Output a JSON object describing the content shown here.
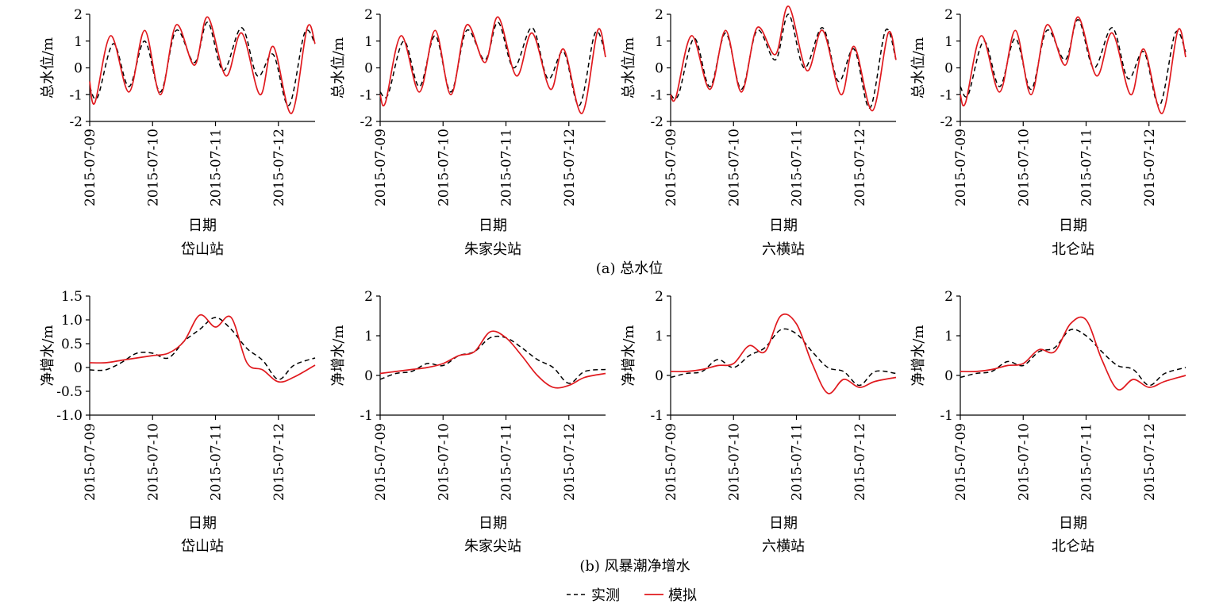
{
  "panel_captions": {
    "a": "(a) 总水位",
    "b": "(b) 风暴潮净增水"
  },
  "legend": {
    "placement": "bottom-center",
    "items": [
      {
        "label": "实测",
        "style": "dashed",
        "color": "#000000"
      },
      {
        "label": "模拟",
        "style": "solid",
        "color": "#e0191e"
      }
    ]
  },
  "chart_data": [
    {
      "type": "line",
      "panel": "a",
      "station": "岱山站",
      "xlabel": "日期",
      "ylabel": "总水位/m",
      "xlim": [
        "2015-07-09",
        "2015-07-12 14:00"
      ],
      "ylim": [
        -2,
        2
      ],
      "yticks": [
        -2,
        -1,
        0,
        1,
        2
      ],
      "ytick_labels": [
        "-2",
        "-1",
        "0",
        "1",
        "2"
      ],
      "xticks": [
        "2015-07-09",
        "2015-07-10",
        "2015-07-11",
        "2015-07-12"
      ],
      "grid": false,
      "series": [
        {
          "name": "实测",
          "color": "#000000",
          "dash": true,
          "x": [
            "2015-07-09 00:00",
            "2015-07-09 03:00",
            "2015-07-09 09:00",
            "2015-07-09 15:00",
            "2015-07-09 21:00",
            "2015-07-10 03:00",
            "2015-07-10 09:00",
            "2015-07-10 16:00",
            "2015-07-10 21:00",
            "2015-07-11 03:00",
            "2015-07-11 10:00",
            "2015-07-11 16:00",
            "2015-07-11 22:00",
            "2015-07-12 04:00",
            "2015-07-12 10:00",
            "2015-07-12 14:00"
          ],
          "y": [
            -0.7,
            -1.1,
            0.9,
            -0.7,
            1.0,
            -0.9,
            1.4,
            0.2,
            1.7,
            -0.1,
            1.5,
            -0.3,
            0.5,
            -1.4,
            1.3,
            0.9
          ]
        },
        {
          "name": "模拟",
          "color": "#e0191e",
          "dash": false,
          "x": [
            "2015-07-09 00:00",
            "2015-07-09 02:00",
            "2015-07-09 08:00",
            "2015-07-09 15:00",
            "2015-07-09 21:00",
            "2015-07-10 03:00",
            "2015-07-10 09:00",
            "2015-07-10 16:00",
            "2015-07-10 21:00",
            "2015-07-11 04:00",
            "2015-07-11 10:00",
            "2015-07-11 17:00",
            "2015-07-11 22:00",
            "2015-07-12 05:00",
            "2015-07-12 11:00",
            "2015-07-12 14:00"
          ],
          "y": [
            -0.5,
            -1.3,
            1.2,
            -0.9,
            1.4,
            -1.0,
            1.6,
            0.1,
            1.9,
            -0.3,
            1.3,
            -1.0,
            0.8,
            -1.7,
            1.5,
            0.9
          ]
        }
      ]
    },
    {
      "type": "line",
      "panel": "a",
      "station": "朱家尖站",
      "xlabel": "日期",
      "ylabel": "总水位/m",
      "xlim": [
        "2015-07-09",
        "2015-07-12 14:00"
      ],
      "ylim": [
        -2,
        2
      ],
      "yticks": [
        -2,
        -1,
        0,
        1,
        2
      ],
      "ytick_labels": [
        "-2",
        "-1",
        "0",
        "1",
        "2"
      ],
      "xticks": [
        "2015-07-09",
        "2015-07-10",
        "2015-07-11",
        "2015-07-12"
      ],
      "grid": false,
      "series": [
        {
          "name": "实测",
          "color": "#000000",
          "dash": true,
          "x": [
            "2015-07-09 00:00",
            "2015-07-09 03:00",
            "2015-07-09 09:00",
            "2015-07-09 15:00",
            "2015-07-09 21:00",
            "2015-07-10 03:00",
            "2015-07-10 09:00",
            "2015-07-10 16:00",
            "2015-07-10 21:00",
            "2015-07-11 03:00",
            "2015-07-11 10:00",
            "2015-07-11 16:00",
            "2015-07-11 22:00",
            "2015-07-12 04:00",
            "2015-07-12 10:00",
            "2015-07-12 14:00"
          ],
          "y": [
            -0.9,
            -1.0,
            1.0,
            -0.7,
            1.2,
            -0.9,
            1.4,
            0.3,
            1.7,
            0.0,
            1.5,
            -0.4,
            0.6,
            -1.4,
            1.3,
            0.5
          ]
        },
        {
          "name": "模拟",
          "color": "#e0191e",
          "dash": false,
          "x": [
            "2015-07-09 00:00",
            "2015-07-09 02:00",
            "2015-07-09 08:00",
            "2015-07-09 15:00",
            "2015-07-09 21:00",
            "2015-07-10 03:00",
            "2015-07-10 09:00",
            "2015-07-10 16:00",
            "2015-07-10 21:00",
            "2015-07-11 04:00",
            "2015-07-11 10:00",
            "2015-07-11 17:00",
            "2015-07-11 22:00",
            "2015-07-12 05:00",
            "2015-07-12 11:00",
            "2015-07-12 14:00"
          ],
          "y": [
            -1.0,
            -1.3,
            1.2,
            -0.9,
            1.4,
            -1.0,
            1.6,
            0.2,
            1.9,
            -0.3,
            1.3,
            -0.8,
            0.7,
            -1.7,
            1.4,
            0.4
          ]
        }
      ]
    },
    {
      "type": "line",
      "panel": "a",
      "station": "六横站",
      "xlabel": "日期",
      "ylabel": "总水位/m",
      "xlim": [
        "2015-07-09",
        "2015-07-12 14:00"
      ],
      "ylim": [
        -2,
        2
      ],
      "yticks": [
        -2,
        -1,
        0,
        1,
        2
      ],
      "ytick_labels": [
        "-2",
        "-1",
        "0",
        "1",
        "2"
      ],
      "xticks": [
        "2015-07-09",
        "2015-07-10",
        "2015-07-11",
        "2015-07-12"
      ],
      "grid": false,
      "series": [
        {
          "name": "实测",
          "color": "#000000",
          "dash": true,
          "x": [
            "2015-07-09 00:00",
            "2015-07-09 03:00",
            "2015-07-09 09:00",
            "2015-07-09 15:00",
            "2015-07-09 21:00",
            "2015-07-10 03:00",
            "2015-07-10 09:00",
            "2015-07-10 16:00",
            "2015-07-10 21:00",
            "2015-07-11 03:00",
            "2015-07-11 10:00",
            "2015-07-11 16:00",
            "2015-07-11 22:00",
            "2015-07-12 04:00",
            "2015-07-12 10:00",
            "2015-07-12 14:00"
          ],
          "y": [
            -1.0,
            -1.0,
            1.1,
            -0.7,
            1.3,
            -0.8,
            1.4,
            0.3,
            2.0,
            0.0,
            1.5,
            -0.5,
            0.7,
            -1.5,
            1.4,
            0.3
          ]
        },
        {
          "name": "模拟",
          "color": "#e0191e",
          "dash": false,
          "x": [
            "2015-07-09 00:00",
            "2015-07-09 02:00",
            "2015-07-09 08:00",
            "2015-07-09 15:00",
            "2015-07-09 21:00",
            "2015-07-10 03:00",
            "2015-07-10 09:00",
            "2015-07-10 16:00",
            "2015-07-10 21:00",
            "2015-07-11 04:00",
            "2015-07-11 10:00",
            "2015-07-11 17:00",
            "2015-07-11 22:00",
            "2015-07-12 05:00",
            "2015-07-12 11:00",
            "2015-07-12 14:00"
          ],
          "y": [
            -1.0,
            -1.1,
            1.2,
            -0.8,
            1.4,
            -0.9,
            1.5,
            0.5,
            2.3,
            -0.1,
            1.4,
            -1.0,
            0.8,
            -1.6,
            1.3,
            0.3
          ]
        }
      ]
    },
    {
      "type": "line",
      "panel": "a",
      "station": "北仑站",
      "xlabel": "日期",
      "ylabel": "总水位/m",
      "xlim": [
        "2015-07-09",
        "2015-07-12 14:00"
      ],
      "ylim": [
        -2,
        2
      ],
      "yticks": [
        -2,
        -1,
        0,
        1,
        2
      ],
      "ytick_labels": [
        "-2",
        "-1",
        "0",
        "1",
        "2"
      ],
      "xticks": [
        "2015-07-09",
        "2015-07-10",
        "2015-07-11",
        "2015-07-12"
      ],
      "grid": false,
      "series": [
        {
          "name": "实测",
          "color": "#000000",
          "dash": true,
          "x": [
            "2015-07-09 00:00",
            "2015-07-09 03:00",
            "2015-07-09 09:00",
            "2015-07-09 15:00",
            "2015-07-09 21:00",
            "2015-07-10 03:00",
            "2015-07-10 09:00",
            "2015-07-10 16:00",
            "2015-07-10 21:00",
            "2015-07-11 03:00",
            "2015-07-11 10:00",
            "2015-07-11 16:00",
            "2015-07-11 22:00",
            "2015-07-12 04:00",
            "2015-07-12 10:00",
            "2015-07-12 14:00"
          ],
          "y": [
            -0.7,
            -1.0,
            1.0,
            -0.7,
            1.1,
            -0.8,
            1.4,
            0.3,
            1.8,
            0.0,
            1.5,
            -0.4,
            0.6,
            -1.4,
            1.3,
            0.6
          ]
        },
        {
          "name": "模拟",
          "color": "#e0191e",
          "dash": false,
          "x": [
            "2015-07-09 00:00",
            "2015-07-09 02:00",
            "2015-07-09 08:00",
            "2015-07-09 15:00",
            "2015-07-09 21:00",
            "2015-07-10 03:00",
            "2015-07-10 09:00",
            "2015-07-10 16:00",
            "2015-07-10 21:00",
            "2015-07-11 04:00",
            "2015-07-11 10:00",
            "2015-07-11 17:00",
            "2015-07-11 22:00",
            "2015-07-12 05:00",
            "2015-07-12 11:00",
            "2015-07-12 14:00"
          ],
          "y": [
            -1.0,
            -1.3,
            1.2,
            -0.9,
            1.4,
            -1.0,
            1.6,
            0.1,
            1.9,
            -0.3,
            1.3,
            -1.0,
            0.7,
            -1.7,
            1.4,
            0.4
          ]
        }
      ]
    },
    {
      "type": "line",
      "panel": "b",
      "station": "岱山站",
      "xlabel": "日期",
      "ylabel": "净增水/m",
      "xlim": [
        "2015-07-09",
        "2015-07-12 14:00"
      ],
      "ylim": [
        -1.0,
        1.5
      ],
      "yticks": [
        -1.0,
        -0.5,
        0,
        0.5,
        1.0,
        1.5
      ],
      "ytick_labels": [
        "-1.0",
        "-0.5",
        "0",
        "0.5",
        "1.0",
        "1.5"
      ],
      "xticks": [
        "2015-07-09",
        "2015-07-10",
        "2015-07-11",
        "2015-07-12"
      ],
      "grid": false,
      "series": [
        {
          "name": "实测",
          "color": "#000000",
          "dash": true,
          "x": [
            "2015-07-09 00:00",
            "2015-07-09 06:00",
            "2015-07-09 12:00",
            "2015-07-09 18:00",
            "2015-07-10 00:00",
            "2015-07-10 06:00",
            "2015-07-10 12:00",
            "2015-07-10 18:00",
            "2015-07-11 00:00",
            "2015-07-11 06:00",
            "2015-07-11 12:00",
            "2015-07-11 18:00",
            "2015-07-12 00:00",
            "2015-07-12 06:00",
            "2015-07-12 14:00"
          ],
          "y": [
            -0.05,
            -0.05,
            0.1,
            0.3,
            0.3,
            0.2,
            0.55,
            0.8,
            1.05,
            0.8,
            0.4,
            0.15,
            -0.25,
            0.05,
            0.2
          ]
        },
        {
          "name": "模拟",
          "color": "#e0191e",
          "dash": false,
          "x": [
            "2015-07-09 00:00",
            "2015-07-09 06:00",
            "2015-07-09 12:00",
            "2015-07-09 18:00",
            "2015-07-10 00:00",
            "2015-07-10 06:00",
            "2015-07-10 12:00",
            "2015-07-10 18:00",
            "2015-07-11 00:00",
            "2015-07-11 06:00",
            "2015-07-11 12:00",
            "2015-07-11 18:00",
            "2015-07-12 00:00",
            "2015-07-12 06:00",
            "2015-07-12 14:00"
          ],
          "y": [
            0.1,
            0.1,
            0.15,
            0.2,
            0.25,
            0.3,
            0.55,
            1.1,
            0.85,
            1.05,
            0.1,
            -0.05,
            -0.3,
            -0.2,
            0.05
          ]
        }
      ]
    },
    {
      "type": "line",
      "panel": "b",
      "station": "朱家尖站",
      "xlabel": "日期",
      "ylabel": "净增水/m",
      "xlim": [
        "2015-07-09",
        "2015-07-12 14:00"
      ],
      "ylim": [
        -1,
        2
      ],
      "yticks": [
        -1,
        0,
        1,
        2
      ],
      "ytick_labels": [
        "-1",
        "0",
        "1",
        "2"
      ],
      "xticks": [
        "2015-07-09",
        "2015-07-10",
        "2015-07-11",
        "2015-07-12"
      ],
      "grid": false,
      "series": [
        {
          "name": "实测",
          "color": "#000000",
          "dash": true,
          "x": [
            "2015-07-09 00:00",
            "2015-07-09 06:00",
            "2015-07-09 12:00",
            "2015-07-09 18:00",
            "2015-07-10 00:00",
            "2015-07-10 06:00",
            "2015-07-10 12:00",
            "2015-07-10 18:00",
            "2015-07-11 00:00",
            "2015-07-11 06:00",
            "2015-07-11 12:00",
            "2015-07-11 18:00",
            "2015-07-12 00:00",
            "2015-07-12 06:00",
            "2015-07-12 14:00"
          ],
          "y": [
            -0.1,
            0.05,
            0.1,
            0.3,
            0.25,
            0.5,
            0.6,
            0.95,
            0.95,
            0.7,
            0.4,
            0.2,
            -0.2,
            0.1,
            0.15
          ]
        },
        {
          "name": "模拟",
          "color": "#e0191e",
          "dash": false,
          "x": [
            "2015-07-09 00:00",
            "2015-07-09 06:00",
            "2015-07-09 12:00",
            "2015-07-09 18:00",
            "2015-07-10 00:00",
            "2015-07-10 06:00",
            "2015-07-10 12:00",
            "2015-07-10 18:00",
            "2015-07-11 00:00",
            "2015-07-11 06:00",
            "2015-07-11 12:00",
            "2015-07-11 18:00",
            "2015-07-12 00:00",
            "2015-07-12 06:00",
            "2015-07-12 14:00"
          ],
          "y": [
            0.05,
            0.1,
            0.15,
            0.2,
            0.3,
            0.5,
            0.6,
            1.1,
            0.95,
            0.5,
            0.0,
            -0.3,
            -0.25,
            -0.05,
            0.05
          ]
        }
      ]
    },
    {
      "type": "line",
      "panel": "b",
      "station": "六横站",
      "xlabel": "日期",
      "ylabel": "净增水/m",
      "xlim": [
        "2015-07-09",
        "2015-07-12 14:00"
      ],
      "ylim": [
        -1,
        2
      ],
      "yticks": [
        -1,
        0,
        1,
        2
      ],
      "ytick_labels": [
        "-1",
        "0",
        "1",
        "2"
      ],
      "xticks": [
        "2015-07-09",
        "2015-07-10",
        "2015-07-11",
        "2015-07-12"
      ],
      "grid": false,
      "series": [
        {
          "name": "实测",
          "color": "#000000",
          "dash": true,
          "x": [
            "2015-07-09 00:00",
            "2015-07-09 06:00",
            "2015-07-09 12:00",
            "2015-07-09 18:00",
            "2015-07-10 00:00",
            "2015-07-10 06:00",
            "2015-07-10 12:00",
            "2015-07-10 18:00",
            "2015-07-11 00:00",
            "2015-07-11 06:00",
            "2015-07-11 12:00",
            "2015-07-11 18:00",
            "2015-07-12 00:00",
            "2015-07-12 06:00",
            "2015-07-12 14:00"
          ],
          "y": [
            -0.05,
            0.05,
            0.1,
            0.4,
            0.2,
            0.5,
            0.7,
            1.15,
            1.05,
            0.6,
            0.2,
            0.1,
            -0.25,
            0.1,
            0.05
          ]
        },
        {
          "name": "模拟",
          "color": "#e0191e",
          "dash": false,
          "x": [
            "2015-07-09 00:00",
            "2015-07-09 06:00",
            "2015-07-09 12:00",
            "2015-07-09 18:00",
            "2015-07-10 00:00",
            "2015-07-10 06:00",
            "2015-07-10 12:00",
            "2015-07-10 18:00",
            "2015-07-11 00:00",
            "2015-07-11 06:00",
            "2015-07-11 12:00",
            "2015-07-11 18:00",
            "2015-07-12 00:00",
            "2015-07-12 06:00",
            "2015-07-12 14:00"
          ],
          "y": [
            0.1,
            0.1,
            0.15,
            0.25,
            0.3,
            0.75,
            0.6,
            1.5,
            1.3,
            0.3,
            -0.45,
            -0.1,
            -0.3,
            -0.15,
            -0.05
          ]
        }
      ]
    },
    {
      "type": "line",
      "panel": "b",
      "station": "北仑站",
      "xlabel": "日期",
      "ylabel": "净增水/m",
      "xlim": [
        "2015-07-09",
        "2015-07-12 14:00"
      ],
      "ylim": [
        -1,
        2
      ],
      "yticks": [
        -1,
        0,
        1,
        2
      ],
      "ytick_labels": [
        "-1",
        "0",
        "1",
        "2"
      ],
      "xticks": [
        "2015-07-09",
        "2015-07-10",
        "2015-07-11",
        "2015-07-12"
      ],
      "grid": false,
      "series": [
        {
          "name": "实测",
          "color": "#000000",
          "dash": true,
          "x": [
            "2015-07-09 00:00",
            "2015-07-09 06:00",
            "2015-07-09 12:00",
            "2015-07-09 18:00",
            "2015-07-10 00:00",
            "2015-07-10 06:00",
            "2015-07-10 12:00",
            "2015-07-10 18:00",
            "2015-07-11 00:00",
            "2015-07-11 06:00",
            "2015-07-11 12:00",
            "2015-07-11 18:00",
            "2015-07-12 00:00",
            "2015-07-12 06:00",
            "2015-07-12 14:00"
          ],
          "y": [
            -0.05,
            0.05,
            0.1,
            0.35,
            0.25,
            0.6,
            0.7,
            1.15,
            1.0,
            0.6,
            0.25,
            0.15,
            -0.25,
            0.05,
            0.2
          ]
        },
        {
          "name": "模拟",
          "color": "#e0191e",
          "dash": false,
          "x": [
            "2015-07-09 00:00",
            "2015-07-09 06:00",
            "2015-07-09 12:00",
            "2015-07-09 18:00",
            "2015-07-10 00:00",
            "2015-07-10 06:00",
            "2015-07-10 12:00",
            "2015-07-10 18:00",
            "2015-07-11 00:00",
            "2015-07-11 06:00",
            "2015-07-11 12:00",
            "2015-07-11 18:00",
            "2015-07-12 00:00",
            "2015-07-12 06:00",
            "2015-07-12 14:00"
          ],
          "y": [
            0.1,
            0.1,
            0.15,
            0.25,
            0.3,
            0.65,
            0.6,
            1.3,
            1.4,
            0.4,
            -0.35,
            -0.1,
            -0.3,
            -0.15,
            0.0
          ]
        }
      ]
    }
  ]
}
